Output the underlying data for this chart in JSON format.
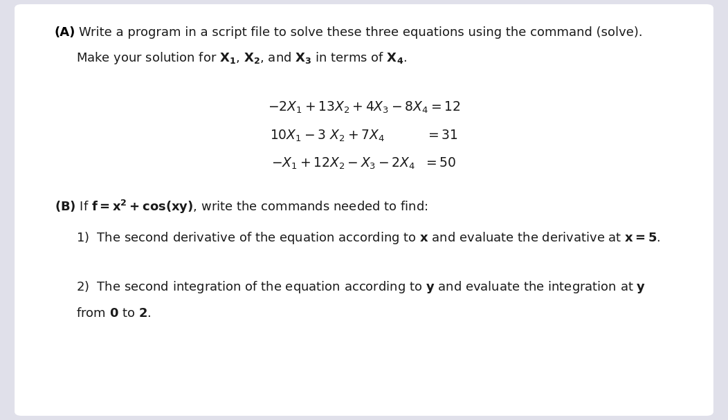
{
  "bg_color": "#e0e0ea",
  "card_color": "#ffffff",
  "text_color": "#1a1a1a",
  "bold_color": "#000000",
  "figsize": [
    10.52,
    6.07
  ],
  "dpi": 100
}
